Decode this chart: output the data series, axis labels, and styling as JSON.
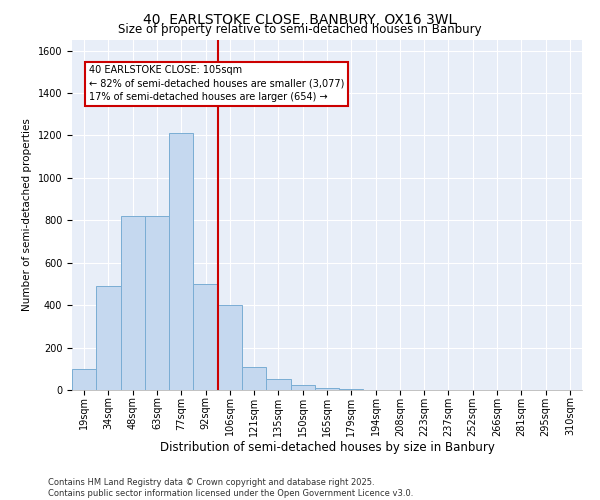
{
  "title1": "40, EARLSTOKE CLOSE, BANBURY, OX16 3WL",
  "title2": "Size of property relative to semi-detached houses in Banbury",
  "xlabel": "Distribution of semi-detached houses by size in Banbury",
  "ylabel": "Number of semi-detached properties",
  "bar_labels": [
    "19sqm",
    "34sqm",
    "48sqm",
    "63sqm",
    "77sqm",
    "92sqm",
    "106sqm",
    "121sqm",
    "135sqm",
    "150sqm",
    "165sqm",
    "179sqm",
    "194sqm",
    "208sqm",
    "223sqm",
    "237sqm",
    "252sqm",
    "266sqm",
    "281sqm",
    "295sqm",
    "310sqm"
  ],
  "bar_values": [
    100,
    490,
    820,
    820,
    1210,
    500,
    400,
    110,
    50,
    25,
    10,
    5,
    2,
    1,
    1,
    0,
    0,
    0,
    0,
    0,
    0
  ],
  "bar_color": "#c5d8ef",
  "bar_edge_color": "#7aadd4",
  "vline_index": 6.0,
  "vline_color": "#cc0000",
  "annotation_text": "40 EARLSTOKE CLOSE: 105sqm\n← 82% of semi-detached houses are smaller (3,077)\n17% of semi-detached houses are larger (654) →",
  "annotation_box_color": "white",
  "annotation_edge_color": "#cc0000",
  "ylim": [
    0,
    1650
  ],
  "yticks": [
    0,
    200,
    400,
    600,
    800,
    1000,
    1200,
    1400,
    1600
  ],
  "bg_color": "#e8eef8",
  "footer": "Contains HM Land Registry data © Crown copyright and database right 2025.\nContains public sector information licensed under the Open Government Licence v3.0.",
  "title1_fontsize": 10,
  "title2_fontsize": 8.5,
  "xlabel_fontsize": 8.5,
  "ylabel_fontsize": 7.5,
  "tick_fontsize": 7,
  "annot_fontsize": 7,
  "footer_fontsize": 6
}
